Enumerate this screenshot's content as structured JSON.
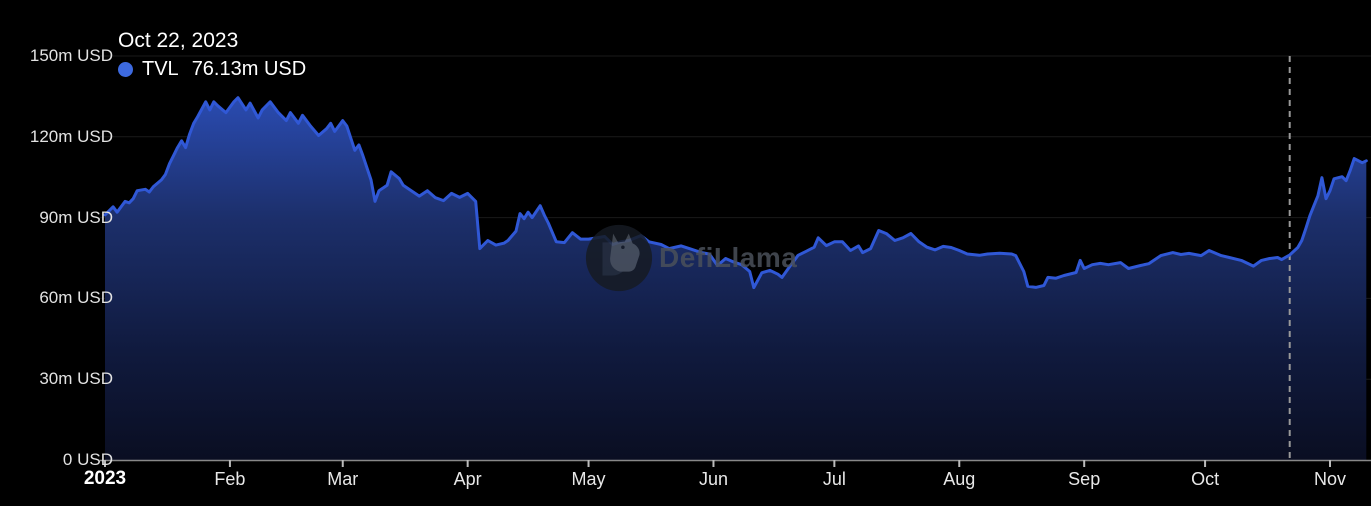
{
  "tooltip": {
    "date": "Oct 22, 2023",
    "series_label": "TVL",
    "series_value": "76.13m USD",
    "dot_color": "#3d6ae0"
  },
  "watermark": {
    "text": "DefiLlama"
  },
  "colors": {
    "background": "#000000",
    "line": "#3058d6",
    "area_top": "#2f55c9",
    "area_mid": "#1c2f6b",
    "area_low": "#101a3e",
    "area_bottom": "#0a0e22",
    "gridline": "rgba(255,255,255,0.10)",
    "axis_line": "rgba(170,170,170,0.8)",
    "tick": "#bbbbbb",
    "marker_dash": "#999999",
    "label_text": "#e2e2e2"
  },
  "chart_data": {
    "type": "area",
    "title": "TVL",
    "xlabel": "",
    "ylabel": "",
    "ylim": [
      0,
      150
    ],
    "y_unit": "m USD",
    "grid": true,
    "legend_position": "top-left",
    "x_axis": {
      "unit": "days since Jan 1, 2023",
      "start_day": 0,
      "end_day": 313,
      "ticks": [
        {
          "label": "2023",
          "day": 0,
          "bold": true
        },
        {
          "label": "Feb",
          "day": 31
        },
        {
          "label": "Mar",
          "day": 59
        },
        {
          "label": "Apr",
          "day": 90
        },
        {
          "label": "May",
          "day": 120
        },
        {
          "label": "Jun",
          "day": 151
        },
        {
          "label": "Jul",
          "day": 181
        },
        {
          "label": "Aug",
          "day": 212
        },
        {
          "label": "Sep",
          "day": 243
        },
        {
          "label": "Oct",
          "day": 273
        },
        {
          "label": "Nov",
          "day": 304
        }
      ]
    },
    "yticks": [
      {
        "label": "0 USD",
        "value": 0
      },
      {
        "label": "30m USD",
        "value": 30
      },
      {
        "label": "60m USD",
        "value": 60
      },
      {
        "label": "90m USD",
        "value": 90
      },
      {
        "label": "120m USD",
        "value": 120
      },
      {
        "label": "150m USD",
        "value": 150
      }
    ],
    "marker": {
      "day": 294,
      "date": "Oct 22, 2023",
      "value": 76.13
    },
    "series": [
      {
        "name": "TVL",
        "unit": "m USD",
        "color": "#3058d6",
        "points": [
          [
            0,
            91
          ],
          [
            2,
            94
          ],
          [
            3,
            92
          ],
          [
            5,
            96
          ],
          [
            6,
            95.5
          ],
          [
            7,
            97
          ],
          [
            8,
            100
          ],
          [
            10,
            100.5
          ],
          [
            11,
            99.5
          ],
          [
            12,
            101.5
          ],
          [
            14,
            104
          ],
          [
            15,
            106
          ],
          [
            16,
            110
          ],
          [
            17,
            113
          ],
          [
            18,
            116
          ],
          [
            19,
            118.5
          ],
          [
            20,
            116
          ],
          [
            21,
            121
          ],
          [
            22,
            125
          ],
          [
            23,
            127.5
          ],
          [
            25,
            133
          ],
          [
            26,
            130
          ],
          [
            27,
            133
          ],
          [
            28,
            131.5
          ],
          [
            30,
            129
          ],
          [
            32,
            133
          ],
          [
            33,
            134.5
          ],
          [
            35,
            130
          ],
          [
            36,
            132.5
          ],
          [
            38,
            127
          ],
          [
            39,
            130
          ],
          [
            41,
            133
          ],
          [
            43,
            129
          ],
          [
            45,
            126
          ],
          [
            46,
            129
          ],
          [
            48,
            125
          ],
          [
            49,
            128
          ],
          [
            51,
            124
          ],
          [
            53,
            120.5
          ],
          [
            55,
            123
          ],
          [
            56,
            125
          ],
          [
            57,
            122
          ],
          [
            59,
            126
          ],
          [
            60,
            124
          ],
          [
            62,
            115
          ],
          [
            63,
            117
          ],
          [
            64,
            113
          ],
          [
            66,
            104
          ],
          [
            67,
            96
          ],
          [
            68,
            100
          ],
          [
            70,
            102
          ],
          [
            71,
            107
          ],
          [
            73,
            104.5
          ],
          [
            74,
            102
          ],
          [
            76,
            100
          ],
          [
            78,
            98
          ],
          [
            80,
            100
          ],
          [
            82,
            97.4
          ],
          [
            84,
            96.3
          ],
          [
            86,
            99
          ],
          [
            88,
            97.5
          ],
          [
            90,
            99
          ],
          [
            92,
            96
          ],
          [
            93,
            78.5
          ],
          [
            95,
            81.5
          ],
          [
            97,
            79.8
          ],
          [
            99,
            80.5
          ],
          [
            100,
            81.5
          ],
          [
            102,
            85
          ],
          [
            103,
            91.5
          ],
          [
            104,
            89.6
          ],
          [
            105,
            92
          ],
          [
            106,
            90
          ],
          [
            108,
            94.4
          ],
          [
            109,
            91
          ],
          [
            110,
            88
          ],
          [
            112,
            81
          ],
          [
            114,
            80.7
          ],
          [
            116,
            84.4
          ],
          [
            118,
            82
          ],
          [
            120,
            82
          ],
          [
            122,
            82.5
          ],
          [
            124,
            83
          ],
          [
            126,
            80
          ],
          [
            128,
            81
          ],
          [
            130,
            81.5
          ],
          [
            133,
            83.3
          ],
          [
            135,
            81
          ],
          [
            138,
            80
          ],
          [
            140,
            78.5
          ],
          [
            143,
            79.5
          ],
          [
            145,
            78.5
          ],
          [
            148,
            77
          ],
          [
            150,
            76.5
          ],
          [
            152,
            72.2
          ],
          [
            154,
            74.8
          ],
          [
            156,
            73.5
          ],
          [
            158,
            72.5
          ],
          [
            160,
            70
          ],
          [
            161,
            64
          ],
          [
            163,
            69.5
          ],
          [
            165,
            70.4
          ],
          [
            167,
            69
          ],
          [
            168,
            67.8
          ],
          [
            170,
            72
          ],
          [
            172,
            76
          ],
          [
            174,
            77.5
          ],
          [
            176,
            79
          ],
          [
            177,
            82.5
          ],
          [
            179,
            79.6
          ],
          [
            181,
            81
          ],
          [
            183,
            81
          ],
          [
            185,
            77.8
          ],
          [
            187,
            79.5
          ],
          [
            188,
            77
          ],
          [
            190,
            78.5
          ],
          [
            192,
            85.2
          ],
          [
            194,
            84
          ],
          [
            196,
            81.5
          ],
          [
            198,
            82.5
          ],
          [
            200,
            84.1
          ],
          [
            202,
            81
          ],
          [
            204,
            79
          ],
          [
            206,
            78
          ],
          [
            208,
            79.3
          ],
          [
            210,
            78.9
          ],
          [
            212,
            77.8
          ],
          [
            214,
            76.5
          ],
          [
            217,
            76
          ],
          [
            219,
            76.5
          ],
          [
            222,
            76.8
          ],
          [
            225,
            76.5
          ],
          [
            226,
            75.9
          ],
          [
            228,
            70
          ],
          [
            229,
            64.5
          ],
          [
            231,
            64.1
          ],
          [
            233,
            64.8
          ],
          [
            234,
            67.8
          ],
          [
            236,
            67.5
          ],
          [
            238,
            68.5
          ],
          [
            241,
            69.6
          ],
          [
            242,
            74.1
          ],
          [
            243,
            71.1
          ],
          [
            245,
            72.5
          ],
          [
            247,
            73
          ],
          [
            249,
            72.5
          ],
          [
            252,
            73.3
          ],
          [
            254,
            71.1
          ],
          [
            257,
            72.2
          ],
          [
            259,
            72.9
          ],
          [
            262,
            75.9
          ],
          [
            265,
            77
          ],
          [
            267,
            76.3
          ],
          [
            269,
            76.7
          ],
          [
            272,
            75.9
          ],
          [
            274,
            77.8
          ],
          [
            277,
            75.9
          ],
          [
            279,
            75.2
          ],
          [
            282,
            74.1
          ],
          [
            285,
            72
          ],
          [
            287,
            74.1
          ],
          [
            289,
            74.8
          ],
          [
            291,
            75.2
          ],
          [
            292,
            74.4
          ],
          [
            294,
            76.13
          ],
          [
            296,
            78.9
          ],
          [
            297,
            81.5
          ],
          [
            298,
            85.9
          ],
          [
            299,
            90.7
          ],
          [
            300,
            94.4
          ],
          [
            301,
            98.1
          ],
          [
            302,
            104.8
          ],
          [
            303,
            97
          ],
          [
            304,
            100
          ],
          [
            305,
            104.4
          ],
          [
            307,
            105.2
          ],
          [
            308,
            103.7
          ],
          [
            309,
            107.4
          ],
          [
            310,
            111.9
          ],
          [
            312,
            110.4
          ],
          [
            313,
            111.1
          ]
        ]
      }
    ]
  }
}
